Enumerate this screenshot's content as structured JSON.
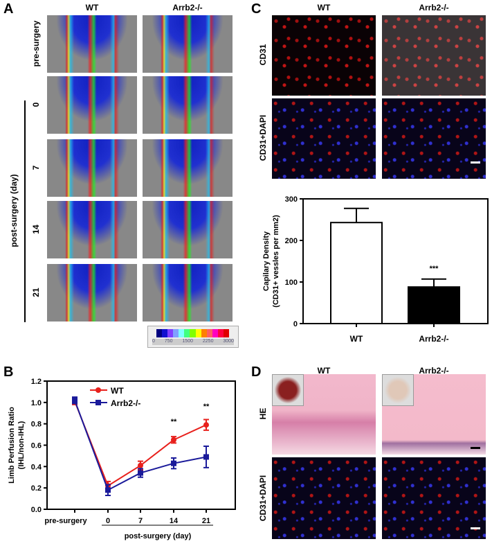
{
  "panels": {
    "a": "A",
    "b": "B",
    "c": "C",
    "d": "D"
  },
  "panel_a": {
    "columns": [
      "WT",
      "Arrb2-/-"
    ],
    "rows": [
      "pre-surgery",
      "0",
      "7",
      "14",
      "21"
    ],
    "group_label": "post-surgery (day)",
    "colorbar_ticks": [
      "0",
      "750",
      "1500",
      "2250",
      "3000"
    ],
    "colorbar_colors": [
      "#00007f",
      "#1010d0",
      "#8040ff",
      "#80a0ff",
      "#80ffff",
      "#40ff80",
      "#80ff00",
      "#ffff00",
      "#ff8000",
      "#ff6060",
      "#ff00c0",
      "#ff0040",
      "#e00000"
    ]
  },
  "panel_c": {
    "columns": [
      "WT",
      "Arrb2-/-"
    ],
    "rows": [
      "CD31",
      "CD31+DAPI"
    ]
  },
  "panel_d": {
    "columns": [
      "WT",
      "Arrb2-/-"
    ],
    "rows": [
      "HE",
      "CD31+DAPI"
    ]
  },
  "chart_data": [
    {
      "panel": "B",
      "type": "line",
      "ylabel": "Limb Perfusion Ratio",
      "ylabel2": "(IHL/non-IHL)",
      "categories": [
        "pre-surgery",
        "0",
        "7",
        "14",
        "21"
      ],
      "xgroup_label": "post-surgery (day)",
      "ylim": [
        0,
        1.2
      ],
      "yticks": [
        "0.0",
        "0.2",
        "0.4",
        "0.6",
        "0.8",
        "1.0",
        "1.2"
      ],
      "legend": "top-left",
      "series": [
        {
          "name": "WT",
          "color": "#e8201c",
          "values": [
            1.01,
            0.22,
            0.41,
            0.65,
            0.79
          ],
          "errors": [
            0.03,
            0.04,
            0.04,
            0.03,
            0.05
          ]
        },
        {
          "name": "Arrb2-/-",
          "color": "#1a1a9a",
          "values": [
            1.02,
            0.18,
            0.34,
            0.43,
            0.49
          ],
          "errors": [
            0.03,
            0.05,
            0.04,
            0.05,
            0.1
          ]
        }
      ],
      "annotations": [
        {
          "category": "14",
          "text": "**"
        },
        {
          "category": "21",
          "text": "**"
        }
      ]
    },
    {
      "panel": "C",
      "type": "bar",
      "ylabel": "Capilary Density",
      "ylabel2": "(CD31+ vessles per mm2)",
      "categories": [
        "WT",
        "Arrb2-/-"
      ],
      "values": [
        243,
        88
      ],
      "errors": [
        34,
        19
      ],
      "fills": [
        "#ffffff",
        "#000000"
      ],
      "ylim": [
        0,
        300
      ],
      "yticks": [
        "0",
        "100",
        "200",
        "300"
      ],
      "annotations": [
        {
          "category": "Arrb2-/-",
          "text": "***"
        }
      ]
    }
  ]
}
